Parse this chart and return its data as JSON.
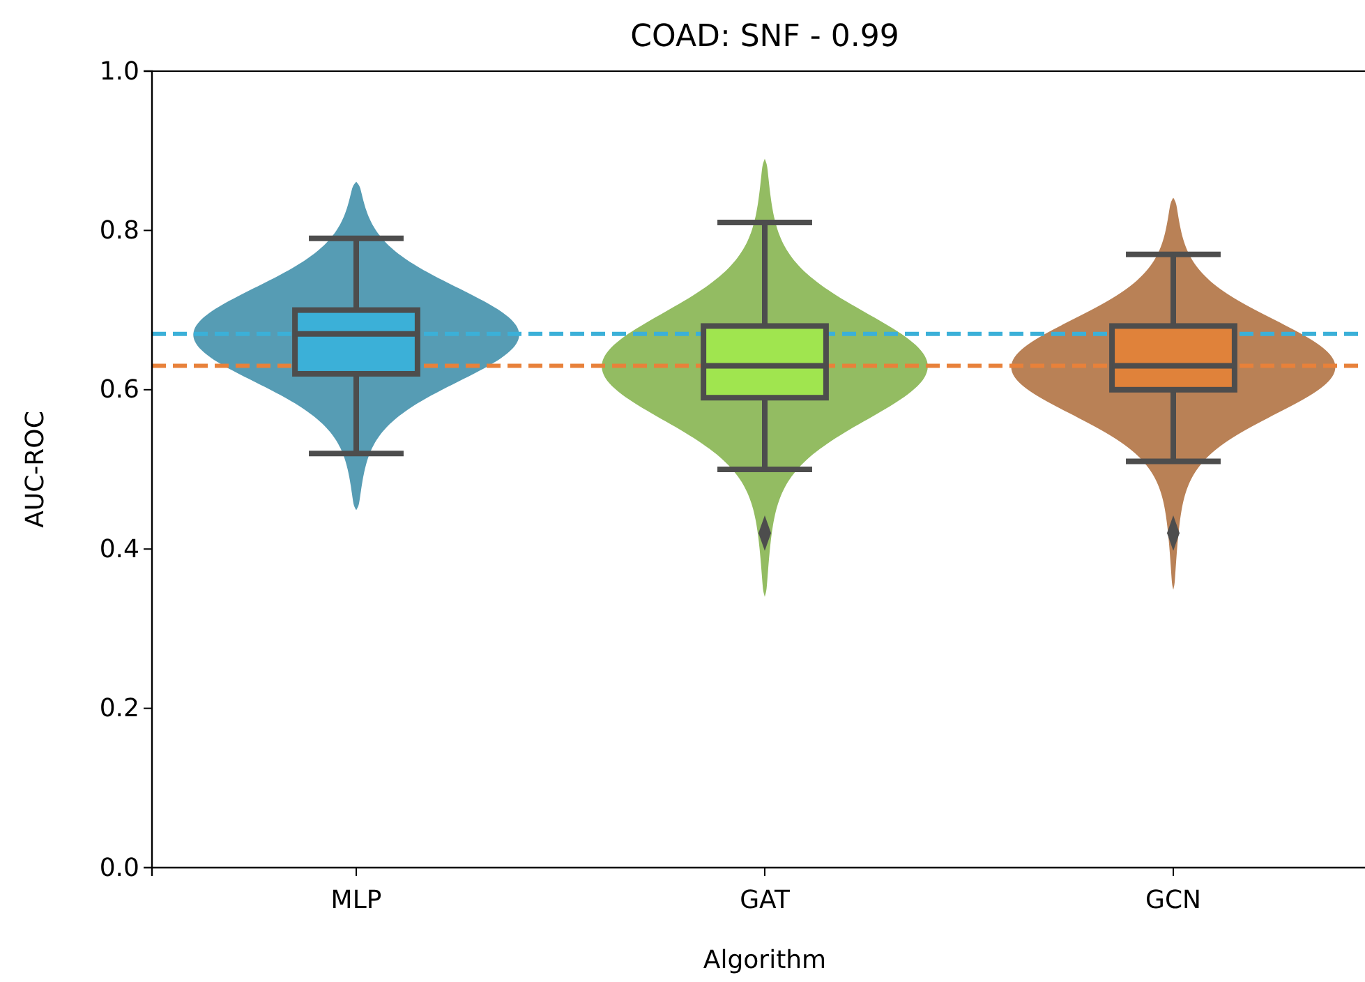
{
  "chart_data": {
    "type": "box",
    "title": "COAD: SNF - 0.99",
    "xlabel": "Algorithm",
    "ylabel": "AUC-ROC",
    "categories": [
      "MLP",
      "GAT",
      "GCN"
    ],
    "colors": [
      "#3bb0d8",
      "#a0e54f",
      "#e0823a"
    ],
    "boxes": [
      {
        "low": 0.52,
        "q1": 0.62,
        "median": 0.67,
        "q3": 0.7,
        "high": 0.79
      },
      {
        "low": 0.5,
        "q1": 0.59,
        "median": 0.63,
        "q3": 0.68,
        "high": 0.81,
        "outliers": [
          0.42
        ]
      },
      {
        "low": 0.51,
        "q1": 0.6,
        "median": 0.63,
        "q3": 0.68,
        "high": 0.77,
        "outliers": [
          0.42
        ]
      }
    ],
    "marker": "diamond",
    "ylim": [
      0,
      1
    ],
    "yticks": [
      {
        "value": 0,
        "label": "0.0"
      },
      0.2,
      0.4,
      0.6,
      0.8,
      {
        "value": 1,
        "label": "1.0"
      }
    ],
    "ref_lines": [
      {
        "axis": "y",
        "value": 0.67,
        "label": null,
        "color": "#3bb0d8",
        "line_style": "dashed"
      },
      {
        "axis": "y",
        "value": 0.63,
        "label": null,
        "color": "#e8813a",
        "line_style": "dashed"
      }
    ]
  }
}
